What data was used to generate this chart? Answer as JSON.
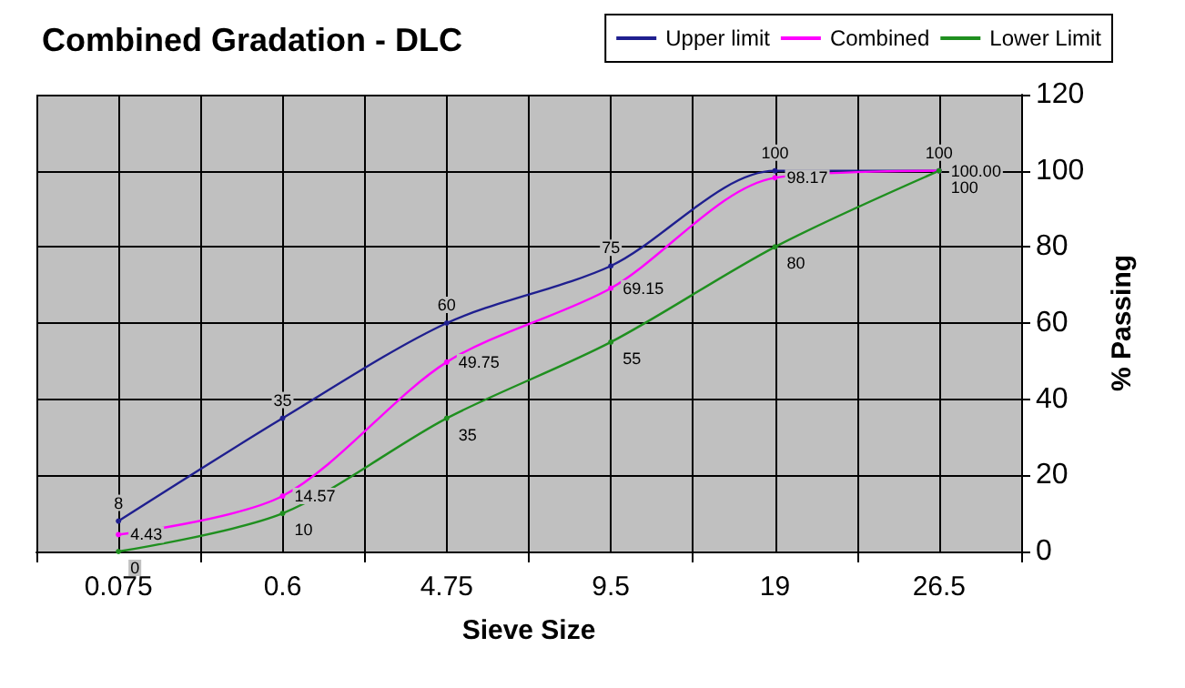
{
  "chart_data": {
    "type": "line",
    "title": "Combined Gradation - DLC",
    "xlabel": "Sieve Size",
    "ylabel": "% Passing",
    "categories": [
      "0.075",
      "0.6",
      "4.75",
      "9.5",
      "19",
      "26.5"
    ],
    "series": [
      {
        "name": "Upper limit",
        "color": "#1f1f8f",
        "values": [
          8,
          35,
          60,
          75,
          100,
          100
        ],
        "value_labels": [
          "8",
          "35",
          "60",
          "75",
          "100",
          "100"
        ]
      },
      {
        "name": "Combined",
        "color": "#ff00ff",
        "values": [
          4.43,
          14.57,
          49.75,
          69.15,
          98.17,
          100
        ],
        "value_labels": [
          "4.43",
          "14.57",
          "49.75",
          "69.15",
          "98.17",
          "100.00"
        ]
      },
      {
        "name": "Lower Limit",
        "color": "#1f8f1f",
        "values": [
          0,
          10,
          35,
          55,
          80,
          100
        ],
        "value_labels": [
          "0",
          "10",
          "35",
          "55",
          "80",
          "100"
        ]
      }
    ],
    "ylim": [
      0,
      120
    ],
    "yticks": [
      0,
      20,
      40,
      60,
      80,
      100,
      120
    ],
    "grid": true,
    "legend": "top right",
    "marker": "circle",
    "line_style": "solid"
  }
}
